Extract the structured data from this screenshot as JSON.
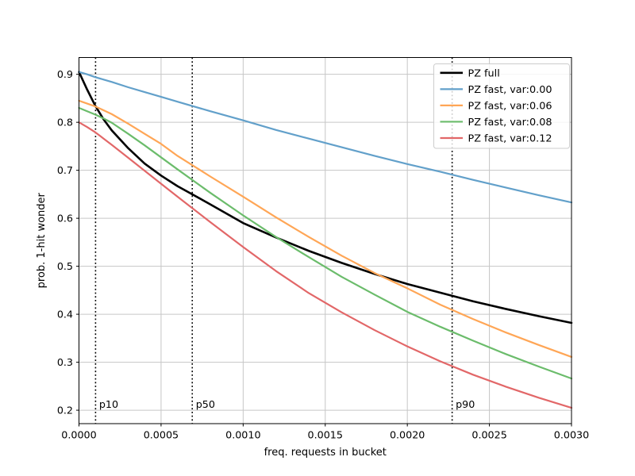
{
  "figure": {
    "background": "#ffffff"
  },
  "chart_data": {
    "type": "line",
    "title": "",
    "xlabel": "freq. requests in bucket",
    "ylabel": "prob. 1-hit wonder",
    "xlim": [
      0.0,
      0.003
    ],
    "ylim": [
      0.172,
      0.935
    ],
    "grid": true,
    "grid_color": "#c6c6c6",
    "legend_position": "upper right",
    "xticks": {
      "values": [
        0.0,
        0.0005,
        0.001,
        0.0015,
        0.002,
        0.0025,
        0.003
      ],
      "labels": [
        "0.0000",
        "0.0005",
        "0.0010",
        "0.0015",
        "0.0020",
        "0.0025",
        "0.0030"
      ]
    },
    "yticks": {
      "values": [
        0.2,
        0.3,
        0.4,
        0.5,
        0.6,
        0.7,
        0.8,
        0.9
      ],
      "labels": [
        "0.2",
        "0.3",
        "0.4",
        "0.5",
        "0.6",
        "0.7",
        "0.8",
        "0.9"
      ]
    },
    "x": [
      0.0,
      5e-05,
      0.0001,
      0.00015,
      0.0002,
      0.0003,
      0.0004,
      0.0005,
      0.0006,
      0.0008,
      0.001,
      0.0012,
      0.0014,
      0.0016,
      0.0018,
      0.002,
      0.0022,
      0.0024,
      0.0026,
      0.0028,
      0.003
    ],
    "series": [
      {
        "name": "PZ full",
        "color": "#000000",
        "width": 2.6,
        "values": [
          0.905,
          0.868,
          0.834,
          0.806,
          0.783,
          0.746,
          0.714,
          0.689,
          0.667,
          0.629,
          0.59,
          0.56,
          0.532,
          0.507,
          0.484,
          0.463,
          0.445,
          0.427,
          0.411,
          0.396,
          0.382
        ]
      },
      {
        "name": "PZ fast, var:0.00",
        "color": "#62a0ca",
        "width": 2.2,
        "values": [
          0.905,
          0.9,
          0.894,
          0.889,
          0.884,
          0.873,
          0.863,
          0.853,
          0.843,
          0.823,
          0.804,
          0.784,
          0.766,
          0.748,
          0.73,
          0.713,
          0.697,
          0.68,
          0.664,
          0.648,
          0.633
        ]
      },
      {
        "name": "PZ fast, var:0.06",
        "color": "#ffa656",
        "width": 2.2,
        "values": [
          0.845,
          0.839,
          0.833,
          0.825,
          0.817,
          0.797,
          0.776,
          0.755,
          0.73,
          0.687,
          0.645,
          0.602,
          0.561,
          0.522,
          0.486,
          0.454,
          0.42,
          0.39,
          0.362,
          0.336,
          0.311
        ]
      },
      {
        "name": "PZ fast, var:0.08",
        "color": "#6bbc6b",
        "width": 2.2,
        "values": [
          0.83,
          0.823,
          0.816,
          0.808,
          0.799,
          0.776,
          0.752,
          0.727,
          0.702,
          0.653,
          0.606,
          0.561,
          0.519,
          0.478,
          0.441,
          0.405,
          0.374,
          0.345,
          0.317,
          0.291,
          0.266
        ]
      },
      {
        "name": "PZ fast, var:0.12",
        "color": "#e26768",
        "width": 2.2,
        "values": [
          0.8,
          0.79,
          0.779,
          0.766,
          0.753,
          0.726,
          0.699,
          0.672,
          0.645,
          0.592,
          0.54,
          0.49,
          0.444,
          0.404,
          0.367,
          0.333,
          0.302,
          0.274,
          0.249,
          0.226,
          0.205
        ]
      }
    ],
    "vlines": [
      {
        "label": "p10",
        "x": 0.000101
      },
      {
        "label": "p50",
        "x": 0.00069
      },
      {
        "label": "p90",
        "x": 0.002273
      }
    ],
    "vline_style": "dotted",
    "vline_color": "#000000",
    "vline_label_y": 0.205
  }
}
